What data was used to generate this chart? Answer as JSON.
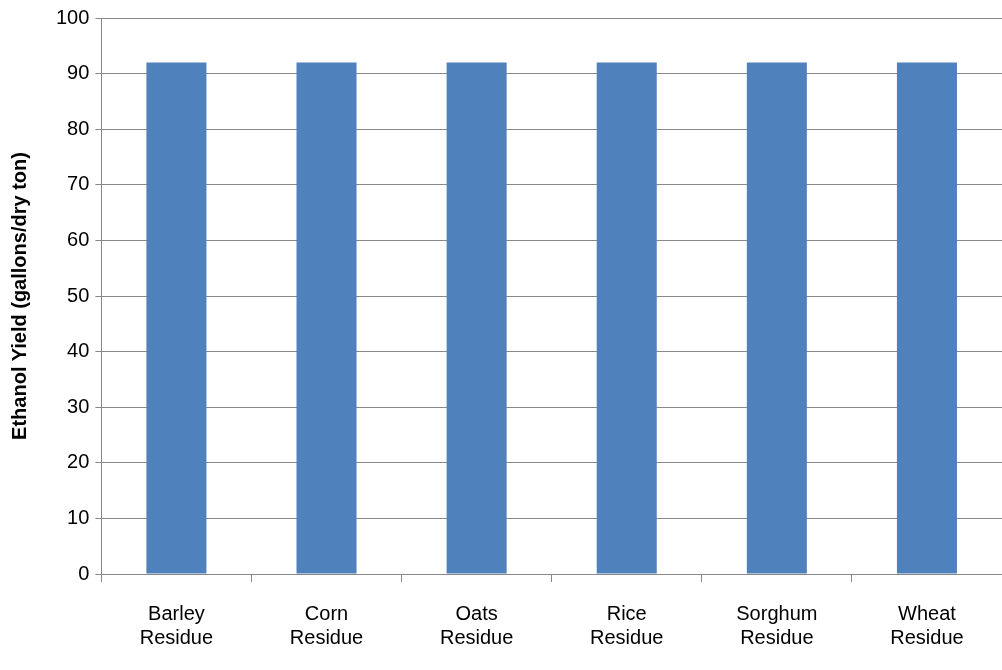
{
  "chart_data": {
    "type": "bar",
    "ylabel": "Ethanol Yield (gallons/dry ton)",
    "categories": [
      "Barley Residue",
      "Corn Residue",
      "Oats Residue",
      "Rice Residue",
      "Sorghum Residue",
      "Wheat Residue"
    ],
    "values": [
      92,
      92,
      92,
      92,
      92,
      92
    ],
    "color": "#4f81bd",
    "ylim": [
      0,
      100
    ],
    "yticks": [
      0,
      10,
      20,
      30,
      40,
      50,
      60,
      70,
      80,
      90,
      100
    ],
    "grid": "y"
  }
}
